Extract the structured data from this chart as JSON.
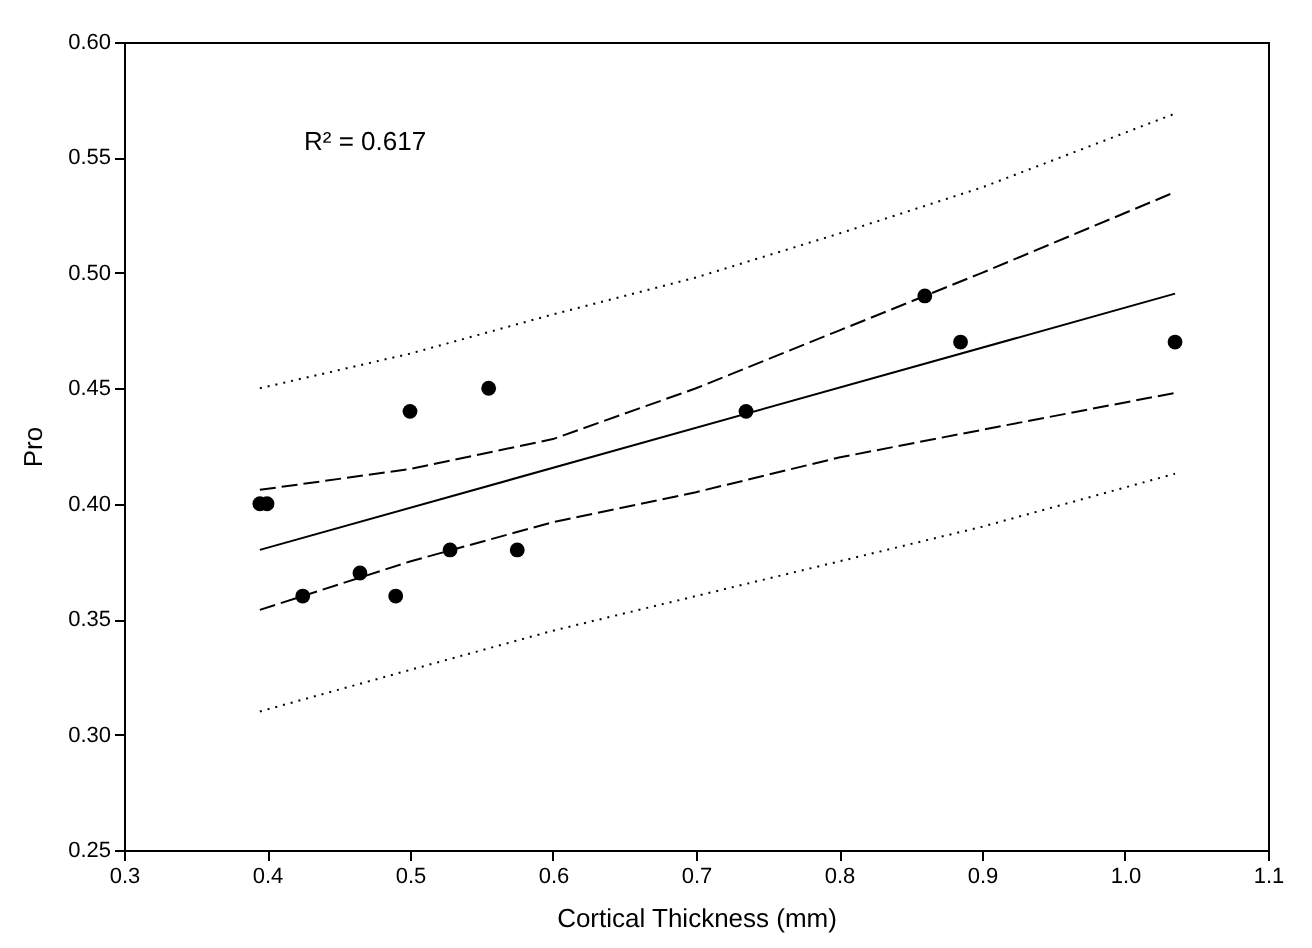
{
  "chart_data": {
    "type": "scatter",
    "xlabel": "Cortical Thickness (mm)",
    "ylabel": "Pro",
    "annotations": [
      "R² = 0.617"
    ],
    "xlim": [
      0.3,
      1.1
    ],
    "xticks": [
      0.3,
      0.4,
      0.5,
      0.6,
      0.7,
      0.8,
      0.9,
      {
        "value": 1,
        "label": "1.0"
      },
      1.1
    ],
    "ylim": [
      0.25,
      0.6
    ],
    "yticks": [
      0.25,
      {
        "value": 0.3,
        "label": "0.30"
      },
      0.35,
      {
        "value": 0.4,
        "label": "0.40"
      },
      0.45,
      {
        "value": 0.5,
        "label": "0.50"
      },
      0.55,
      {
        "value": 0.6,
        "label": "0.60"
      }
    ],
    "grid": false,
    "series": [
      {
        "type": "scatter",
        "marker": "circle",
        "color": "#000000",
        "x": [
          0.395,
          0.4,
          0.425,
          0.465,
          0.49,
          0.5,
          0.528,
          0.555,
          0.575,
          0.735,
          0.86,
          0.885,
          1.035
        ],
        "values": [
          0.4,
          0.4,
          0.36,
          0.37,
          0.36,
          0.44,
          0.38,
          0.45,
          0.38,
          0.44,
          0.49,
          0.47,
          0.47
        ]
      },
      {
        "type": "line",
        "line_style": "solid",
        "color": "#000000",
        "x": [
          0.395,
          1.035
        ],
        "values": [
          0.38,
          0.491
        ]
      },
      {
        "type": "line",
        "line_style": "dashed",
        "color": "#000000",
        "x": [
          0.395,
          0.5,
          0.6,
          0.7,
          0.8,
          0.9,
          1.035
        ],
        "values": [
          0.406,
          0.415,
          0.428,
          0.45,
          0.475,
          0.5,
          0.535
        ]
      },
      {
        "type": "line",
        "line_style": "dashed",
        "color": "#000000",
        "x": [
          0.395,
          0.5,
          0.6,
          0.7,
          0.8,
          0.9,
          1.035
        ],
        "values": [
          0.354,
          0.375,
          0.392,
          0.405,
          0.42,
          0.432,
          0.448
        ]
      },
      {
        "type": "line",
        "line_style": "dotted",
        "color": "#000000",
        "x": [
          0.395,
          0.5,
          0.6,
          0.7,
          0.8,
          0.9,
          1.035
        ],
        "values": [
          0.45,
          0.465,
          0.482,
          0.498,
          0.517,
          0.537,
          0.569
        ]
      },
      {
        "type": "line",
        "line_style": "dotted",
        "color": "#000000",
        "x": [
          0.395,
          0.5,
          0.6,
          0.7,
          0.8,
          0.9,
          1.035
        ],
        "values": [
          0.31,
          0.328,
          0.345,
          0.36,
          0.375,
          0.39,
          0.413
        ]
      }
    ]
  }
}
